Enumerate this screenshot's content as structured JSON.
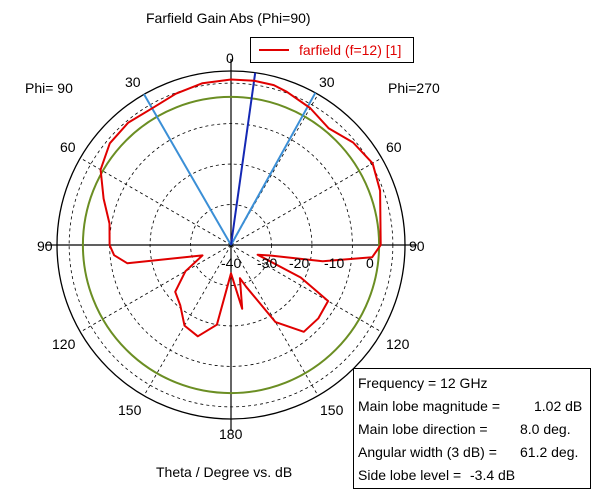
{
  "title": "Farfield Gain Abs (Phi=90)",
  "xlabel": "Theta / Degree vs. dB",
  "phi_left": "Phi= 90",
  "phi_right": "Phi=270",
  "colors": {
    "curve": "#e00000",
    "reference_circle": "#6b8e23",
    "main_lobe_dir": "#1428b4",
    "beamwidth": "#3b8fd6",
    "grid": "#000000"
  },
  "chart_data": {
    "type": "polar",
    "title": "Farfield Gain Abs (Phi=90)",
    "xlabel": "Theta / Degree vs. dB",
    "r_ticks": [
      "-40",
      "-30",
      "-20",
      "-10",
      "0"
    ],
    "r_range": [
      -40,
      3
    ],
    "angle_ticks_left": [
      "0",
      "30",
      "60",
      "90",
      "120",
      "150",
      "180"
    ],
    "angle_ticks_right": [
      "30",
      "60",
      "90",
      "120",
      "150"
    ],
    "reference_circle_db": -3.4,
    "main_lobe_direction_deg": 8.0,
    "beamwidth_edges_deg": [
      -30.0,
      29.0
    ],
    "series": [
      {
        "name": "farfield (f=12) [1]",
        "points": [
          [
            -180,
            -33.0
          ],
          [
            -170,
            -20.0
          ],
          [
            -160,
            -16.0
          ],
          [
            -150,
            -17.0
          ],
          [
            -140,
            -20.5
          ],
          [
            -130,
            -22.0
          ],
          [
            -120,
            -27.0
          ],
          [
            -110,
            -32.5
          ],
          [
            -100,
            -14.0
          ],
          [
            -95,
            -11.0
          ],
          [
            -90,
            -10.0
          ],
          [
            -80,
            -9.5
          ],
          [
            -70,
            -6.5
          ],
          [
            -60,
            -2.8
          ],
          [
            -50,
            -0.9
          ],
          [
            -40,
            -0.5
          ],
          [
            -30,
            -1.0
          ],
          [
            -20,
            -0.2
          ],
          [
            -10,
            0.6
          ],
          [
            0,
            0.9
          ],
          [
            8,
            1.0
          ],
          [
            15,
            0.9
          ],
          [
            20,
            0.3
          ],
          [
            30,
            -0.9
          ],
          [
            40,
            -2.4
          ],
          [
            50,
            -0.6
          ],
          [
            60,
            0.4
          ],
          [
            70,
            -0.8
          ],
          [
            80,
            -2.5
          ],
          [
            90,
            -3.0
          ],
          [
            95,
            -5.0
          ],
          [
            100,
            -17.0
          ],
          [
            105,
            -30.0
          ],
          [
            110,
            -33.0
          ],
          [
            115,
            -21.0
          ],
          [
            120,
            -12.3
          ],
          [
            130,
            -11.8
          ],
          [
            140,
            -12.0
          ],
          [
            150,
            -18.0
          ],
          [
            160,
            -29.0
          ],
          [
            165,
            -31.5
          ],
          [
            170,
            -24.0
          ],
          [
            180,
            -33.0
          ]
        ]
      }
    ]
  },
  "legend": {
    "label": "farfield (f=12) [1]"
  },
  "info": [
    {
      "label": "Frequency = 12 GHz",
      "value": ""
    },
    {
      "label": "Main lobe magnitude =",
      "value": "1.02 dB"
    },
    {
      "label": "Main lobe direction =",
      "value": "8.0 deg."
    },
    {
      "label": "Angular width (3 dB) =",
      "value": "61.2 deg."
    },
    {
      "label": "Side lobe level =",
      "value": "-3.4 dB"
    }
  ]
}
